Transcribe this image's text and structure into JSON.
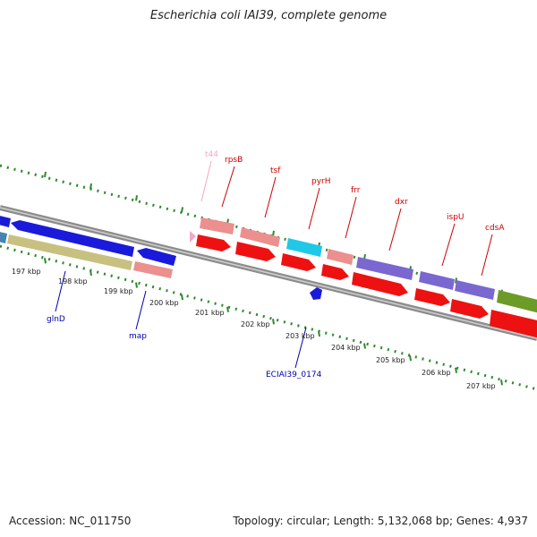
{
  "header": {
    "title": "Escherichia coli IAI39, complete genome"
  },
  "footer": {
    "accession": "Accession: NC_011750",
    "stats": "Topology: circular; Length: 5,132,068 bp; Genes: 4,937"
  },
  "colors": {
    "backbone": "#8c8c8c",
    "ticks": "#2f8a2f",
    "top_labels": "#cc0000",
    "bottom_labels": "#0000aa",
    "trna": "#f4a6c8"
  },
  "ruler": {
    "labels": [
      "197 kbp",
      "198 kbp",
      "199 kbp",
      "200 kbp",
      "201 kbp",
      "202 kbp",
      "203 kbp",
      "204 kbp",
      "205 kbp",
      "206 kbp",
      "207 kbp"
    ]
  },
  "gene_labels_top": [
    "t44",
    "rpsB",
    "tsf",
    "pyrH",
    "frr",
    "dxr",
    "ispU",
    "cdsA"
  ],
  "gene_labels_bottom": [
    "glnD",
    "map",
    "ECIAI39_0174"
  ]
}
